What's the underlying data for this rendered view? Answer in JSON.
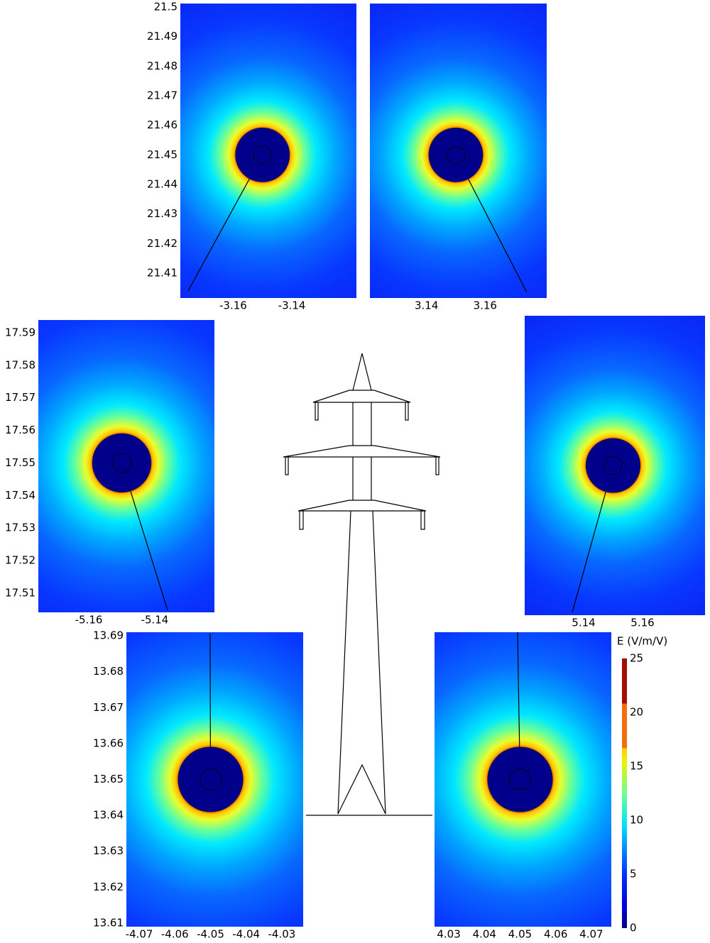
{
  "chart_data": {
    "type": "field-map",
    "panels": [
      {
        "xlim": [
          -3.178,
          -3.118
        ],
        "ylim": [
          21.4016,
          21.5012
        ],
        "xticks": [
          -3.16,
          -3.14
        ],
        "yticks": [
          21.5,
          21.49,
          21.48,
          21.47,
          21.46,
          21.45,
          21.44,
          21.43,
          21.42,
          21.41
        ],
        "conductor": {
          "x": -3.15,
          "y": 21.45,
          "radius": 0.0092
        }
      },
      {
        "xlim": [
          3.1207,
          3.181
        ],
        "ylim": [
          21.4016,
          21.5012
        ],
        "xticks": [
          3.14,
          3.16
        ],
        "conductor": {
          "x": 3.15,
          "y": 21.45,
          "radius": 0.0092
        }
      },
      {
        "xlim": [
          -5.1753,
          -5.1219
        ],
        "ylim": [
          17.5041,
          17.5939
        ],
        "xticks": [
          -5.16,
          -5.14
        ],
        "yticks": [
          17.59,
          17.58,
          17.57,
          17.56,
          17.55,
          17.54,
          17.53,
          17.52,
          17.51
        ],
        "conductor": {
          "x": -5.15,
          "y": 17.55,
          "radius": 0.0089
        }
      },
      {
        "xlim": [
          5.12,
          5.1812
        ],
        "ylim": [
          17.4992,
          17.6008
        ],
        "xticks": [
          5.14,
          5.16
        ],
        "conductor": {
          "x": 5.15,
          "y": 17.55,
          "radius": 0.0092
        }
      },
      {
        "xlim": [
          -4.0736,
          -4.024
        ],
        "ylim": [
          13.609,
          13.691
        ],
        "xticks": [
          -4.07,
          -4.06,
          -4.05,
          -4.04,
          -4.03
        ],
        "yticks": [
          13.69,
          13.68,
          13.67,
          13.66,
          13.65,
          13.64,
          13.63,
          13.62,
          13.61
        ],
        "conductor": {
          "x": -4.05,
          "y": 13.65,
          "radius": 0.0091
        }
      },
      {
        "xlim": [
          4.026,
          4.0756
        ],
        "ylim": [
          13.609,
          13.691
        ],
        "xticks": [
          4.03,
          4.04,
          4.05,
          4.06,
          4.07
        ],
        "conductor": {
          "x": 4.05,
          "y": 13.65,
          "radius": 0.0091
        }
      }
    ],
    "colorbar": {
      "title": "E (V/m/V)",
      "lim": [
        0,
        25
      ],
      "ticks": [
        0,
        5,
        10,
        15,
        20,
        25
      ]
    }
  }
}
